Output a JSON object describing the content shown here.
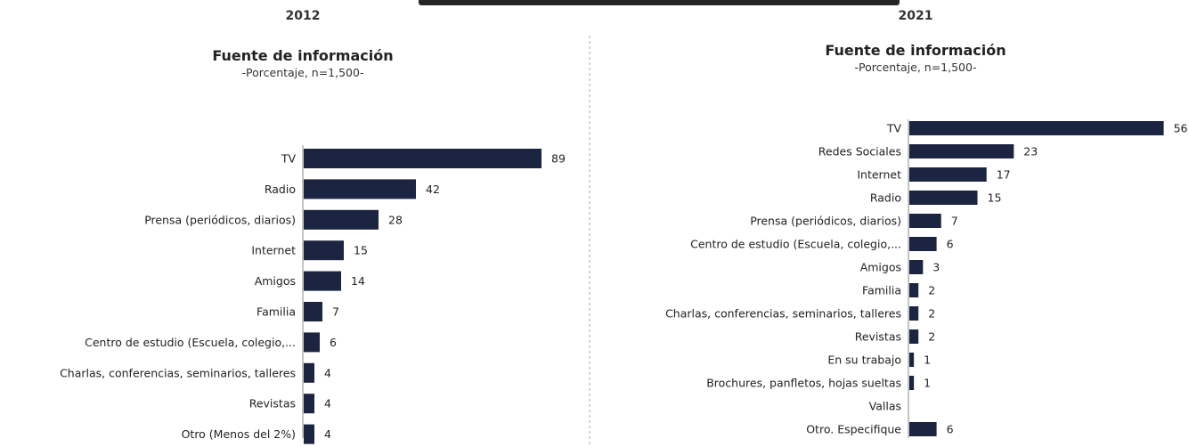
{
  "chart_data": [
    {
      "type": "bar",
      "orientation": "horizontal",
      "year": "2012",
      "title": "Fuente de información",
      "subtitle": "-Porcentaje, n=1,500-",
      "categories": [
        "TV",
        "Radio",
        "Prensa (periódicos, diarios)",
        "Internet",
        "Amigos",
        "Familia",
        "Centro de estudio (Escuela, colegio,...",
        "Charlas, conferencias, seminarios, talleres",
        "Revistas",
        "Otro (Menos del 2%)"
      ],
      "values": [
        89,
        42,
        28,
        15,
        14,
        7,
        6,
        4,
        4,
        4
      ],
      "bar_color": "#1b2440"
    },
    {
      "type": "bar",
      "orientation": "horizontal",
      "year": "2021",
      "title": "Fuente de información",
      "subtitle": "-Porcentaje, n=1,500-",
      "categories": [
        "TV",
        "Redes Sociales",
        "Internet",
        "Radio",
        "Prensa (periódicos, diarios)",
        "Centro de estudio (Escuela, colegio,...",
        "Amigos",
        "Familia",
        "Charlas, conferencias, seminarios, talleres",
        "Revistas",
        "En su trabajo",
        "Brochures, panfletos, hojas sueltas",
        "Vallas",
        "Otro. Especifique"
      ],
      "values": [
        56,
        23,
        17,
        15,
        7,
        6,
        3,
        2,
        2,
        2,
        1,
        1,
        null,
        6
      ],
      "value_labels": [
        "56",
        "23",
        "17",
        "15",
        "7",
        "6",
        "3",
        "2",
        "2",
        "2",
        "1",
        "1",
        "",
        "6"
      ],
      "bar_color": "#1b2440"
    }
  ],
  "colors": {
    "bar": "#1b2440",
    "divider": "#aaaaaa",
    "axis": "#888888"
  }
}
